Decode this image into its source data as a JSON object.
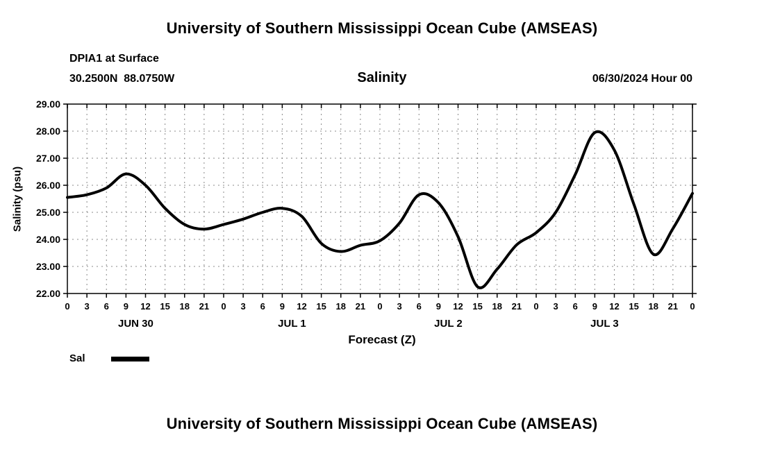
{
  "page": {
    "top_title": "University of Southern Mississippi Ocean Cube (AMSEAS)",
    "bottom_title": "University of Southern Mississippi Ocean Cube (AMSEAS)"
  },
  "header": {
    "station": "DPIA1 at Surface",
    "coordinates": "30.2500N  88.0750W",
    "variable": "Salinity",
    "run": "06/30/2024 Hour 00"
  },
  "chart_data": {
    "type": "line",
    "title": "Salinity",
    "xlabel": "Forecast (Z)",
    "ylabel": "Salinity (psu)",
    "ylim": [
      22.0,
      29.0
    ],
    "ytick_step": 1.0,
    "ytick_labels": [
      "22.00",
      "23.00",
      "24.00",
      "25.00",
      "26.00",
      "27.00",
      "28.00",
      "29.00"
    ],
    "x_hours": [
      0,
      3,
      6,
      9,
      12,
      15,
      18,
      21,
      24,
      27,
      30,
      33,
      36,
      39,
      42,
      45,
      48,
      51,
      54,
      57,
      60,
      63,
      66,
      69,
      72,
      75,
      78,
      81,
      84,
      87,
      90,
      93,
      96
    ],
    "xtick_labels": [
      "0",
      "3",
      "6",
      "9",
      "12",
      "15",
      "18",
      "21",
      "0",
      "3",
      "6",
      "9",
      "12",
      "15",
      "18",
      "21",
      "0",
      "3",
      "6",
      "9",
      "12",
      "15",
      "18",
      "21",
      "0",
      "3",
      "6",
      "9",
      "12",
      "15",
      "18",
      "21",
      "0"
    ],
    "day_labels": [
      "JUN 30",
      "JUL 1",
      "JUL 2",
      "JUL 3"
    ],
    "grid": "dashed",
    "legend_position": "bottom-left",
    "series": [
      {
        "name": "Sal",
        "color": "#000000",
        "values": [
          25.55,
          25.65,
          25.9,
          26.42,
          26.0,
          25.15,
          24.55,
          24.38,
          24.55,
          24.75,
          25.0,
          25.15,
          24.85,
          23.85,
          23.55,
          23.78,
          23.95,
          24.6,
          25.65,
          25.35,
          24.1,
          22.25,
          22.9,
          23.8,
          24.25,
          25.0,
          26.4,
          27.95,
          27.3,
          25.3,
          23.45,
          24.4,
          25.7
        ]
      }
    ]
  }
}
